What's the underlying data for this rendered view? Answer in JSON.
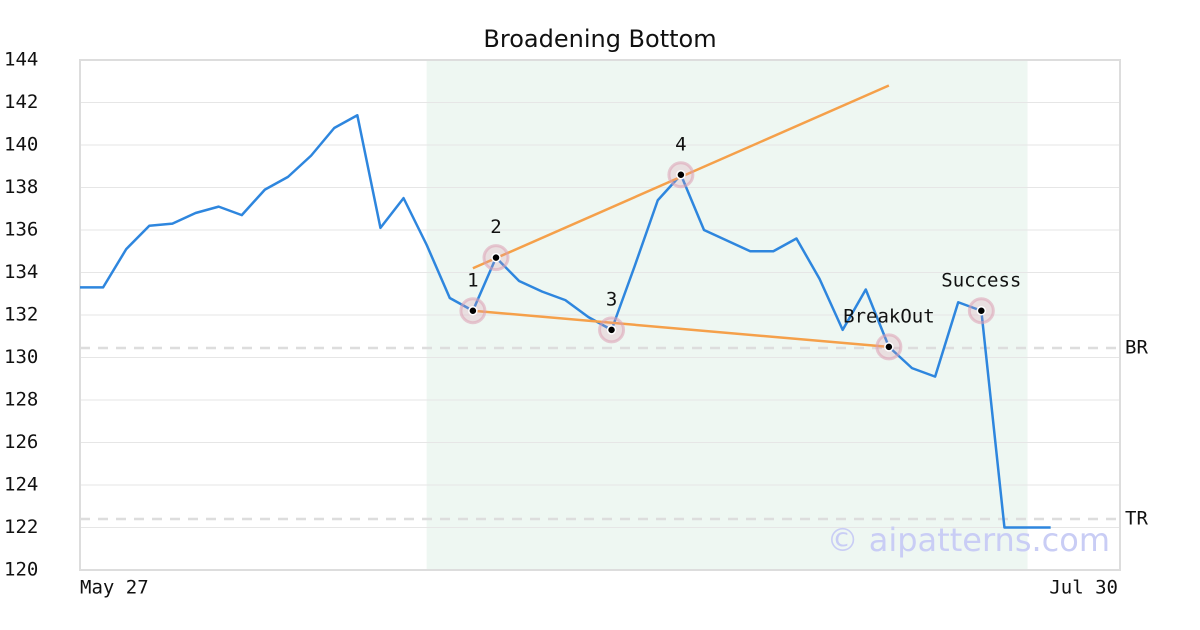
{
  "chart_data": {
    "type": "line",
    "title": "Broadening Bottom",
    "x": [
      0,
      1,
      2,
      3,
      4,
      5,
      6,
      7,
      8,
      9,
      10,
      11,
      12,
      13,
      14,
      15,
      16,
      17,
      18,
      19,
      20,
      21,
      22,
      23,
      24,
      25,
      26,
      27,
      28,
      29,
      30,
      31,
      32,
      33,
      34,
      35,
      36,
      37,
      38,
      39,
      40,
      41,
      42
    ],
    "values": [
      133.3,
      133.3,
      135.1,
      136.2,
      136.3,
      136.8,
      137.1,
      136.7,
      137.9,
      138.5,
      139.5,
      140.8,
      141.4,
      136.1,
      137.5,
      135.3,
      132.8,
      132.2,
      134.7,
      133.6,
      133.1,
      132.7,
      131.9,
      131.3,
      134.3,
      137.4,
      138.6,
      136.0,
      135.5,
      135.0,
      135.0,
      135.6,
      133.7,
      131.3,
      133.2,
      130.5,
      129.5,
      129.1,
      132.6,
      132.2,
      122.0,
      122.0,
      122.0
    ],
    "color": "#2e86de",
    "xlim": [
      0,
      45
    ],
    "xticks": [
      {
        "value": 0,
        "label": "May 27"
      },
      {
        "value": 45,
        "label": "Jul 30"
      }
    ],
    "ylim": [
      120,
      144
    ],
    "yticks": [
      120,
      122,
      124,
      126,
      128,
      130,
      132,
      134,
      136,
      138,
      140,
      142,
      144
    ],
    "grid": true,
    "shaded_range": [
      15,
      41
    ],
    "shaded_color": "#eef7f2",
    "trendlines": [
      {
        "x": [
          17,
          35
        ],
        "values": [
          134.2,
          142.8
        ],
        "color": "#f5a04a"
      },
      {
        "x": [
          17,
          35
        ],
        "values": [
          132.2,
          130.5
        ],
        "color": "#f5a04a"
      }
    ],
    "points": [
      {
        "label": "1",
        "x": 17,
        "value": 132.2
      },
      {
        "label": "2",
        "x": 18,
        "value": 134.7
      },
      {
        "label": "3",
        "x": 23,
        "value": 131.3
      },
      {
        "label": "4",
        "x": 26,
        "value": 138.6
      },
      {
        "label": "BreakOut",
        "x": 35,
        "value": 130.5
      },
      {
        "label": "Success",
        "x": 39,
        "value": 132.2
      }
    ],
    "levels": [
      {
        "label": "BR",
        "value": 130.45
      },
      {
        "label": "TR",
        "value": 122.4
      }
    ],
    "watermark": "© aipatterns.com"
  }
}
